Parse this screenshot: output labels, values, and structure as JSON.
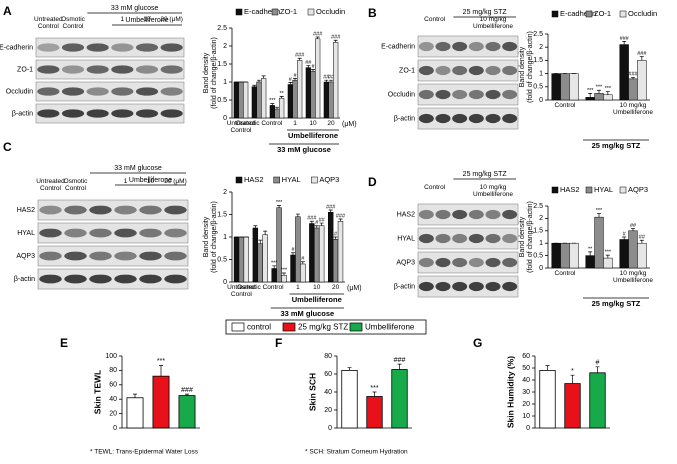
{
  "blots": [
    {
      "panel": "A",
      "headers": [
        "33 mM glucose",
        "Umbelliferone"
      ],
      "columns": [
        "Untreated Control",
        "Osmotic Control",
        "1",
        "10",
        "20 (μM)"
      ],
      "rows": [
        "E-cadherin",
        "ZO-1",
        "Occludin",
        "β-actin"
      ]
    },
    {
      "panel": "B",
      "headers": [
        "25 mg/kg STZ"
      ],
      "columns": [
        "Control",
        "10 mg/kg Umbelliferone"
      ],
      "rows": [
        "E-cadherin",
        "ZO-1",
        "Occludin",
        "β-actin"
      ]
    },
    {
      "panel": "C",
      "headers": [
        "33 mM glucose",
        "Umbelliferone"
      ],
      "columns": [
        "Untreated Control",
        "Osmotic Control",
        "1",
        "10",
        "20 (μM)"
      ],
      "rows": [
        "HAS2",
        "HYAL",
        "AQP3",
        "β-actin"
      ]
    },
    {
      "panel": "D",
      "headers": [
        "25 mg/kg STZ"
      ],
      "columns": [
        "Control",
        "10 mg/kg Umbelliferone"
      ],
      "rows": [
        "HAS2",
        "HYAL",
        "AQP3",
        "β-actin"
      ]
    }
  ],
  "legend": {
    "names": [
      "control",
      "25 mg/kg STZ",
      "Umbelliferone"
    ],
    "colors": [
      "#ffffff",
      "#e8111a",
      "#17a94a"
    ]
  },
  "chart_data": [
    {
      "type": "bar",
      "ylabel": [
        "Band density",
        "(fold of change/β-actin)"
      ],
      "categories": [
        "Untreated Control",
        "Osmotic Control",
        null,
        "1",
        "10",
        "20"
      ],
      "x_unit": "(μM)",
      "group_labels": [
        "Umbelliferone",
        "33 mM glucose"
      ],
      "ylim": [
        0,
        2.5
      ],
      "yticks": [
        0,
        0.5,
        1,
        1.5,
        2,
        2.5
      ],
      "series": [
        {
          "name": "E-cadherin",
          "color": "#111111",
          "values": [
            1,
            0.87,
            0.35,
            0.93,
            1.4,
            1.0
          ],
          "errors": [
            0,
            0.04,
            0.05,
            0.06,
            0.06,
            0.05
          ],
          "annotations": [
            null,
            null,
            "***",
            "#",
            "##",
            "##"
          ]
        },
        {
          "name": "ZO-1",
          "color": "#8c8c8c",
          "values": [
            1,
            1.0,
            0.25,
            1.05,
            1.3,
            1.0
          ],
          "errors": [
            0,
            0.05,
            0.05,
            0.05,
            0.05,
            0.05
          ],
          "annotations": [
            null,
            null,
            null,
            "#",
            "#",
            "##"
          ]
        },
        {
          "name": "Occludin",
          "color": "#e6e6e6",
          "values": [
            1,
            1.1,
            0.55,
            1.6,
            2.2,
            2.1
          ],
          "errors": [
            0,
            0.07,
            0.05,
            0.06,
            0.05,
            0.06
          ],
          "annotations": [
            null,
            null,
            "**",
            "###",
            "###",
            "###"
          ]
        }
      ]
    },
    {
      "type": "bar",
      "ylabel": [
        "Band density",
        "(fold of change/β-actin)"
      ],
      "categories": [
        "Control",
        null,
        "10 mg/kg Umbelliferone"
      ],
      "group_labels": [
        "25 mg/kg STZ"
      ],
      "ylim": [
        0,
        2.5
      ],
      "yticks": [
        0,
        0.5,
        1,
        1.5,
        2,
        2.5
      ],
      "series": [
        {
          "name": "E-cadherin",
          "color": "#111111",
          "values": [
            1,
            0.1,
            2.1
          ],
          "errors": [
            0,
            0.15,
            0.12
          ],
          "annotations": [
            null,
            "***",
            "###"
          ]
        },
        {
          "name": "ZO-1",
          "color": "#8c8c8c",
          "values": [
            1,
            0.25,
            0.8
          ],
          "errors": [
            0,
            0.12,
            0.06
          ],
          "annotations": [
            null,
            "***",
            "###"
          ]
        },
        {
          "name": "Occludin",
          "color": "#e6e6e6",
          "values": [
            1,
            0.2,
            1.5
          ],
          "errors": [
            0,
            0.12,
            0.15
          ],
          "annotations": [
            null,
            "***",
            "###"
          ]
        }
      ]
    },
    {
      "type": "bar",
      "ylabel": [
        "Band density",
        "(fold of change/β-actin)"
      ],
      "categories": [
        "Untreated Control",
        "Osmotic Control",
        null,
        "1",
        "10",
        "20"
      ],
      "x_unit": "(μM)",
      "group_labels": [
        "Umbelliferone",
        "33 mM glucose"
      ],
      "ylim": [
        0,
        2
      ],
      "yticks": [
        0,
        0.5,
        1,
        1.5,
        2
      ],
      "series": [
        {
          "name": "HAS2",
          "color": "#111111",
          "values": [
            1,
            1.2,
            0.3,
            0.6,
            1.3,
            1.55
          ],
          "errors": [
            0,
            0.05,
            0.06,
            0.05,
            0.05,
            0.05
          ],
          "annotations": [
            null,
            null,
            "***",
            "#",
            "###",
            "###"
          ]
        },
        {
          "name": "HYAL",
          "color": "#8c8c8c",
          "values": [
            1,
            0.85,
            1.65,
            1.45,
            1.2,
            0.95
          ],
          "errors": [
            0,
            0.08,
            0.05,
            0.06,
            0.05,
            0.05
          ],
          "annotations": [
            null,
            null,
            "***",
            null,
            "#",
            "#"
          ]
        },
        {
          "name": "AQP3",
          "color": "#e6e6e6",
          "values": [
            1,
            1.05,
            0.15,
            0.4,
            1.25,
            1.35
          ],
          "errors": [
            0,
            0.08,
            0.05,
            0.05,
            0.06,
            0.05
          ],
          "annotations": [
            null,
            null,
            "***",
            "#",
            "##",
            "###"
          ]
        }
      ]
    },
    {
      "type": "bar",
      "ylabel": [
        "Band density",
        "(fold of change/β-actin)"
      ],
      "categories": [
        "Control",
        null,
        "10 mg/kg Umbelliferone"
      ],
      "group_labels": [
        "25 mg/kg STZ"
      ],
      "ylim": [
        0,
        2.5
      ],
      "yticks": [
        0,
        0.5,
        1,
        1.5,
        2,
        2.5
      ],
      "series": [
        {
          "name": "HAS2",
          "color": "#111111",
          "values": [
            1,
            0.5,
            1.15
          ],
          "errors": [
            0,
            0.15,
            0.1
          ],
          "annotations": [
            null,
            "**",
            "#"
          ]
        },
        {
          "name": "HYAL",
          "color": "#8c8c8c",
          "values": [
            1,
            2.05,
            1.5
          ],
          "errors": [
            0,
            0.15,
            0.1
          ],
          "annotations": [
            null,
            "***",
            "##"
          ]
        },
        {
          "name": "AQP3",
          "color": "#e6e6e6",
          "values": [
            1,
            0.4,
            1.0
          ],
          "errors": [
            0,
            0.12,
            0.12
          ],
          "annotations": [
            null,
            "***",
            "##"
          ]
        }
      ]
    },
    {
      "type": "simple_bar",
      "panel": "E",
      "ylabel": "Skin TEWL",
      "note": "* TEWL: Trans-Epidermal Water Loss",
      "ylim": [
        0,
        100
      ],
      "yticks": [
        0,
        20,
        40,
        60,
        80,
        100
      ],
      "values": [
        42,
        72,
        45
      ],
      "errors": [
        5,
        15,
        2
      ],
      "annotations": [
        null,
        "***",
        "###"
      ],
      "colors": [
        "#ffffff",
        "#e8111a",
        "#17a94a"
      ]
    },
    {
      "type": "simple_bar",
      "panel": "F",
      "ylabel": "Skin SCH",
      "note": "* SCH: Stratum Corneum Hydration",
      "ylim": [
        0,
        80
      ],
      "yticks": [
        0,
        20,
        40,
        60,
        80
      ],
      "values": [
        64,
        35,
        65
      ],
      "errors": [
        3,
        5,
        6
      ],
      "annotations": [
        null,
        "***",
        "###"
      ],
      "colors": [
        "#ffffff",
        "#e8111a",
        "#17a94a"
      ]
    },
    {
      "type": "simple_bar",
      "panel": "G",
      "ylabel": "Skin Humidity (%)",
      "ylim": [
        0,
        60
      ],
      "yticks": [
        0,
        10,
        20,
        30,
        40,
        50,
        60
      ],
      "values": [
        48,
        37,
        46
      ],
      "errors": [
        4,
        7,
        5
      ],
      "annotations": [
        null,
        "*",
        "#"
      ],
      "colors": [
        "#ffffff",
        "#e8111a",
        "#17a94a"
      ]
    }
  ]
}
